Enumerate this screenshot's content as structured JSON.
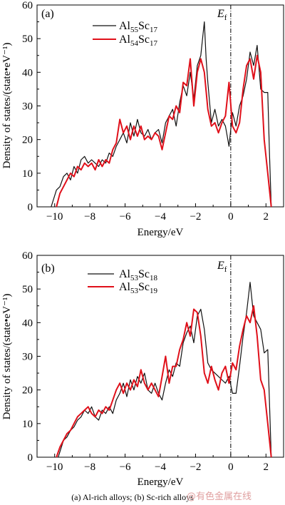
{
  "caption": "(a) Al-rich alloys; (b) Sc-rich alloys",
  "watermark": "@有色金属在线",
  "colors": {
    "series_black": "#111111",
    "series_red": "#e0101a",
    "fermi_line": "#000000"
  },
  "chart_data": [
    {
      "type": "line",
      "panel_label": "(a)",
      "xlabel": "Energy/eV",
      "ylabel": "Density of states/(state•eV⁻¹)",
      "xlim": [
        -11,
        3
      ],
      "ylim": [
        0,
        60
      ],
      "xticks": [
        -10,
        -8,
        -6,
        -4,
        -2,
        0,
        2
      ],
      "xtick_labels": [
        "−10",
        "−8",
        "−6",
        "−4",
        "−2",
        "0",
        "2"
      ],
      "yticks": [
        0,
        10,
        20,
        30,
        40,
        50,
        60
      ],
      "fermi_energy": 0,
      "fermi_label": {
        "main": "E",
        "sub": "f"
      },
      "legend_position": "top-center",
      "series": [
        {
          "name": "Al55Sc17",
          "legend": {
            "el1": "Al",
            "n1": "55",
            "el2": "Sc",
            "n2": "17"
          },
          "color": "#111111",
          "x": [
            -10.2,
            -9.9,
            -9.7,
            -9.5,
            -9.3,
            -9.1,
            -8.9,
            -8.7,
            -8.5,
            -8.3,
            -8.1,
            -7.9,
            -7.7,
            -7.5,
            -7.3,
            -7.1,
            -6.9,
            -6.7,
            -6.5,
            -6.3,
            -6.1,
            -5.9,
            -5.7,
            -5.5,
            -5.3,
            -5.1,
            -4.9,
            -4.7,
            -4.5,
            -4.3,
            -4.1,
            -3.9,
            -3.7,
            -3.5,
            -3.3,
            -3.1,
            -2.9,
            -2.7,
            -2.5,
            -2.3,
            -2.1,
            -1.9,
            -1.7,
            -1.5,
            -1.4,
            -1.3,
            -1.1,
            -0.9,
            -0.7,
            -0.5,
            -0.3,
            -0.1,
            0.1,
            0.3,
            0.5,
            0.7,
            0.9,
            1.1,
            1.3,
            1.5,
            1.7,
            1.9,
            2.1,
            2.2,
            2.3
          ],
          "y": [
            0,
            5,
            6,
            9,
            10,
            8,
            12,
            10,
            14,
            15,
            13,
            14,
            13,
            12,
            14,
            13,
            16,
            15,
            18,
            20,
            22,
            19,
            25,
            21,
            26,
            22,
            21,
            23,
            20,
            22,
            23,
            19,
            25,
            27,
            29,
            24,
            31,
            36,
            33,
            40,
            32,
            42,
            45,
            55,
            44,
            37,
            25,
            29,
            24,
            26,
            24,
            18,
            28,
            24,
            30,
            33,
            38,
            46,
            42,
            48,
            35,
            34,
            34,
            16,
            0
          ]
        },
        {
          "name": "Al54Sc17",
          "legend": {
            "el1": "Al",
            "n1": "54",
            "el2": "Sc",
            "n2": "17"
          },
          "color": "#e0101a",
          "x": [
            -9.9,
            -9.7,
            -9.5,
            -9.3,
            -9.1,
            -8.9,
            -8.7,
            -8.5,
            -8.3,
            -8.1,
            -7.9,
            -7.7,
            -7.5,
            -7.3,
            -7.1,
            -6.9,
            -6.7,
            -6.5,
            -6.3,
            -6.1,
            -5.9,
            -5.7,
            -5.5,
            -5.3,
            -5.1,
            -4.9,
            -4.7,
            -4.5,
            -4.3,
            -4.1,
            -3.9,
            -3.7,
            -3.5,
            -3.3,
            -3.1,
            -2.9,
            -2.7,
            -2.5,
            -2.3,
            -2.1,
            -1.9,
            -1.7,
            -1.5,
            -1.3,
            -1.1,
            -0.9,
            -0.7,
            -0.5,
            -0.3,
            -0.1,
            0.1,
            0.3,
            0.5,
            0.7,
            0.9,
            1.1,
            1.3,
            1.5,
            1.7,
            1.9,
            2.1,
            2.3
          ],
          "y": [
            0,
            4,
            6,
            8,
            10,
            9,
            12,
            11,
            13,
            12,
            13,
            11,
            14,
            12,
            14,
            13,
            17,
            19,
            26,
            22,
            24,
            20,
            24,
            21,
            24,
            20,
            21,
            20,
            22,
            21,
            17,
            22,
            27,
            26,
            30,
            28,
            37,
            36,
            44,
            30,
            40,
            44,
            40,
            29,
            24,
            25,
            22,
            25,
            27,
            37,
            24,
            22,
            25,
            35,
            42,
            44,
            38,
            45,
            40,
            20,
            10,
            0
          ]
        }
      ]
    },
    {
      "type": "line",
      "panel_label": "(b)",
      "xlabel": "Energy/eV",
      "ylabel": "Density of states/(state•eV⁻¹)",
      "xlim": [
        -11,
        3
      ],
      "ylim": [
        0,
        60
      ],
      "xticks": [
        -10,
        -8,
        -6,
        -4,
        -2,
        0,
        2
      ],
      "xtick_labels": [
        "−10",
        "−8",
        "−6",
        "−4",
        "−2",
        "0",
        "2"
      ],
      "yticks": [
        0,
        10,
        20,
        30,
        40,
        50,
        60
      ],
      "fermi_energy": 0,
      "fermi_label": {
        "main": "E",
        "sub": "f"
      },
      "legend_position": "top-center",
      "series": [
        {
          "name": "Al53Sc18",
          "legend": {
            "el1": "Al",
            "n1": "53",
            "el2": "Sc",
            "n2": "18"
          },
          "color": "#111111",
          "x": [
            -9.8,
            -9.5,
            -9.3,
            -9.1,
            -8.9,
            -8.7,
            -8.5,
            -8.3,
            -8.1,
            -7.9,
            -7.7,
            -7.5,
            -7.3,
            -7.1,
            -6.9,
            -6.7,
            -6.5,
            -6.3,
            -6.1,
            -5.9,
            -5.7,
            -5.5,
            -5.3,
            -5.1,
            -4.9,
            -4.7,
            -4.5,
            -4.3,
            -4.1,
            -3.9,
            -3.7,
            -3.5,
            -3.3,
            -3.1,
            -2.9,
            -2.7,
            -2.5,
            -2.3,
            -2.1,
            -1.9,
            -1.7,
            -1.5,
            -1.3,
            -1.1,
            -0.9,
            -0.7,
            -0.5,
            -0.3,
            -0.1,
            0.1,
            0.3,
            0.5,
            0.7,
            0.9,
            1.1,
            1.3,
            1.5,
            1.7,
            1.9,
            2.1,
            2.3
          ],
          "y": [
            0,
            5,
            6,
            8,
            9,
            11,
            12,
            14,
            13,
            15,
            12,
            11,
            14,
            13,
            15,
            13,
            17,
            19,
            22,
            18,
            23,
            20,
            24,
            22,
            25,
            20,
            19,
            22,
            19,
            17,
            22,
            26,
            24,
            28,
            27,
            34,
            37,
            39,
            34,
            42,
            44,
            38,
            28,
            26,
            25,
            24,
            23,
            22,
            24,
            19,
            19,
            27,
            36,
            43,
            52,
            42,
            40,
            38,
            31,
            32,
            0
          ]
        },
        {
          "name": "Al53Sc19",
          "legend": {
            "el1": "Al",
            "n1": "53",
            "el2": "Sc",
            "n2": "19"
          },
          "color": "#e0101a",
          "x": [
            -9.9,
            -9.7,
            -9.5,
            -9.3,
            -9.1,
            -8.9,
            -8.7,
            -8.5,
            -8.3,
            -8.1,
            -7.9,
            -7.7,
            -7.5,
            -7.3,
            -7.1,
            -6.9,
            -6.7,
            -6.5,
            -6.3,
            -6.1,
            -5.9,
            -5.7,
            -5.5,
            -5.3,
            -5.1,
            -4.9,
            -4.7,
            -4.5,
            -4.3,
            -4.1,
            -3.9,
            -3.7,
            -3.5,
            -3.3,
            -3.1,
            -2.9,
            -2.7,
            -2.5,
            -2.3,
            -2.1,
            -1.9,
            -1.7,
            -1.5,
            -1.3,
            -1.1,
            -0.9,
            -0.7,
            -0.5,
            -0.3,
            -0.1,
            0.1,
            0.3,
            0.5,
            0.7,
            0.9,
            1.1,
            1.3,
            1.5,
            1.7,
            1.9,
            2.1,
            2.3
          ],
          "y": [
            0,
            3,
            5,
            7,
            8,
            10,
            12,
            13,
            14,
            15,
            13,
            12,
            14,
            13,
            15,
            14,
            17,
            20,
            22,
            19,
            22,
            20,
            23,
            21,
            26,
            22,
            20,
            22,
            20,
            18,
            24,
            30,
            22,
            27,
            27,
            32,
            35,
            40,
            36,
            44,
            43,
            36,
            25,
            22,
            27,
            23,
            20,
            25,
            27,
            22,
            28,
            26,
            33,
            38,
            42,
            40,
            45,
            36,
            23,
            20,
            10,
            0
          ]
        }
      ]
    }
  ]
}
